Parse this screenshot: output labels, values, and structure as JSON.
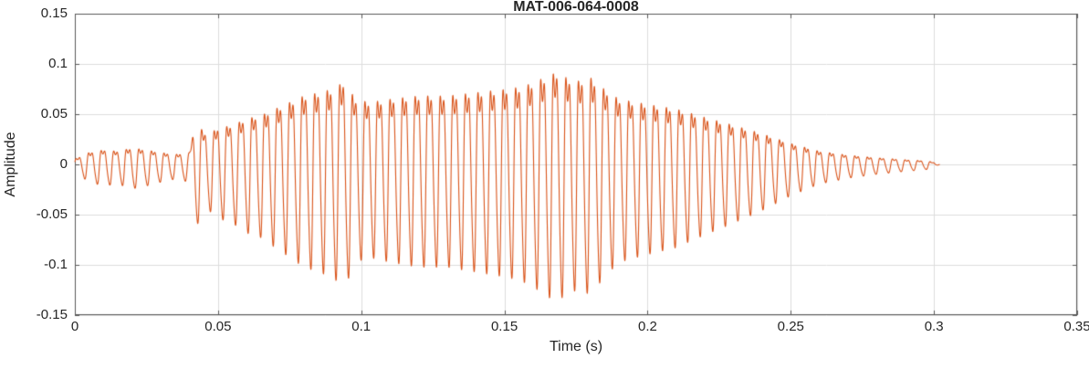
{
  "chart_data": {
    "type": "line",
    "title": "MAT-006-064-0008",
    "xlabel": "Time (s)",
    "ylabel": "Amplitude",
    "xlim": [
      0,
      0.35
    ],
    "ylim": [
      -0.15,
      0.15
    ],
    "xticks": [
      0,
      0.05,
      0.1,
      0.15,
      0.2,
      0.25,
      0.3,
      0.35
    ],
    "xtick_labels": [
      "0",
      "0.05",
      "0.1",
      "0.15",
      "0.2",
      "0.25",
      "0.3",
      "0.35"
    ],
    "yticks": [
      -0.15,
      -0.1,
      -0.05,
      0,
      0.05,
      0.1,
      0.15
    ],
    "ytick_labels": [
      "-0.15",
      "-0.1",
      "-0.05",
      "0",
      "0.05",
      "0.1",
      "0.15"
    ],
    "grid": true,
    "legend": null,
    "line_color": "#D95319",
    "axis_color": "#595959",
    "grid_color": "#dcdcdc",
    "text_color": "#262626",
    "signal": {
      "description": "speech-like oscillatory waveform reconstructed as amplitude envelope times harmonic carrier",
      "duration_s": 0.302,
      "carrier_hz": 228,
      "harmonics": [
        [
          1,
          0.85,
          0.0
        ],
        [
          2,
          0.25,
          1.3
        ],
        [
          3,
          0.12,
          0.7
        ]
      ],
      "peak_amplitude": 0.141,
      "peak_time_s": 0.168,
      "envelope_t": [
        0.0,
        0.005,
        0.01,
        0.015,
        0.02,
        0.025,
        0.03,
        0.035,
        0.04,
        0.042,
        0.046,
        0.05,
        0.055,
        0.06,
        0.065,
        0.07,
        0.075,
        0.08,
        0.085,
        0.09,
        0.094,
        0.098,
        0.103,
        0.11,
        0.12,
        0.13,
        0.14,
        0.15,
        0.155,
        0.16,
        0.165,
        0.168,
        0.172,
        0.176,
        0.18,
        0.185,
        0.19,
        0.2,
        0.21,
        0.22,
        0.23,
        0.24,
        0.25,
        0.26,
        0.27,
        0.28,
        0.29,
        0.298,
        0.302
      ],
      "envelope_a": [
        0.008,
        0.018,
        0.022,
        0.02,
        0.025,
        0.022,
        0.018,
        0.015,
        0.018,
        0.065,
        0.045,
        0.055,
        0.06,
        0.07,
        0.075,
        0.085,
        0.095,
        0.105,
        0.11,
        0.115,
        0.127,
        0.1,
        0.095,
        0.1,
        0.105,
        0.105,
        0.11,
        0.115,
        0.118,
        0.125,
        0.135,
        0.141,
        0.132,
        0.128,
        0.133,
        0.115,
        0.1,
        0.092,
        0.085,
        0.072,
        0.06,
        0.047,
        0.032,
        0.02,
        0.014,
        0.01,
        0.007,
        0.005,
        0.0
      ]
    }
  }
}
